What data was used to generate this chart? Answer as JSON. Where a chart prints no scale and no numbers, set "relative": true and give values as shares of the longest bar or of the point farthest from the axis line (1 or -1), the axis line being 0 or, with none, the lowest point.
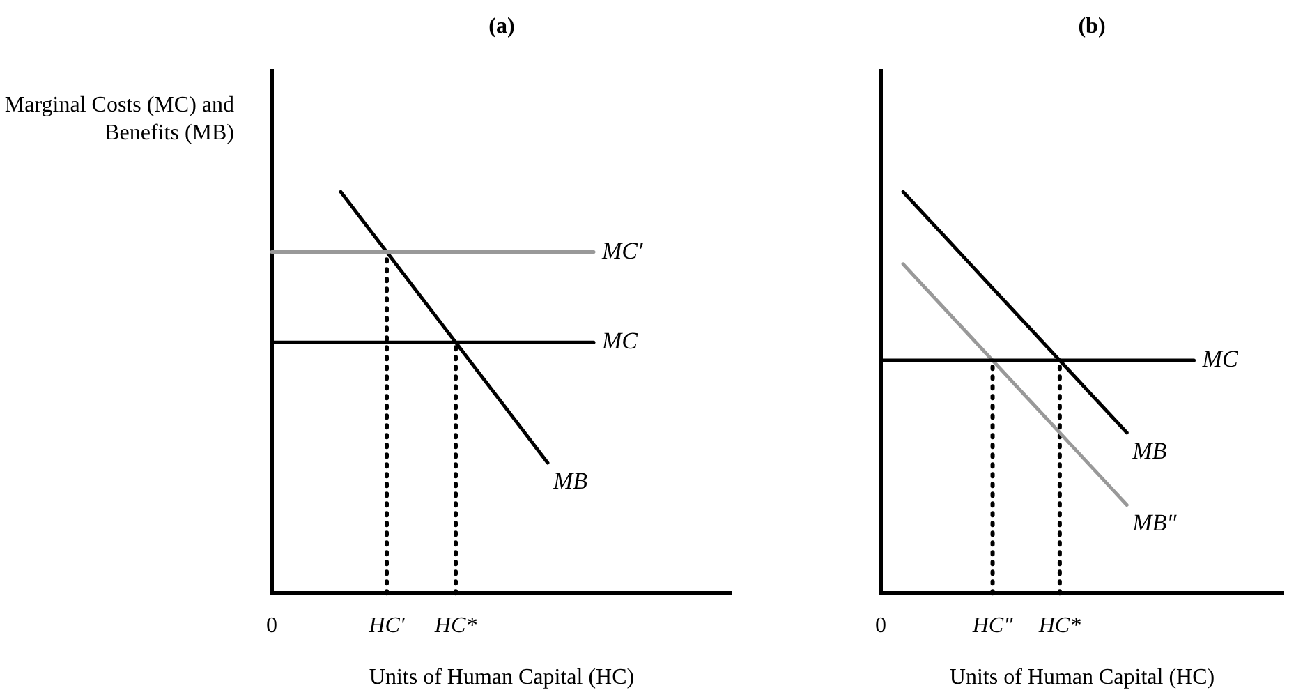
{
  "chart_data": [
    {
      "type": "line",
      "title": "(a)",
      "ylabel": "Marginal Costs (MC) and Benefits (MB)",
      "xlabel": "Units of Human Capital (HC)",
      "relative": true,
      "marker": "none",
      "categories": [
        "0",
        null,
        null,
        null,
        null,
        "HC′",
        null,
        null,
        "HC*",
        null,
        null,
        null,
        null,
        null,
        null,
        null,
        null,
        null,
        null,
        null,
        null
      ],
      "ref_lines": [
        {
          "axis": "x",
          "value": "HC′",
          "color": "#000000",
          "line_style": "dotted"
        },
        {
          "axis": "x",
          "value": "HC*",
          "color": "#000000",
          "line_style": "dotted"
        }
      ],
      "series": [
        {
          "name": "MC′",
          "color": "#999999",
          "values": [
            0.85,
            0.85,
            0.85,
            0.85,
            0.85,
            0.85,
            0.85,
            0.85,
            0.85,
            0.85,
            0.85,
            0.85,
            0.85,
            0.85,
            0.85,
            null,
            null,
            null,
            null,
            null,
            null
          ]
        },
        {
          "name": "MC",
          "color": "#000000",
          "values": [
            0.625,
            0.625,
            0.625,
            0.625,
            0.625,
            0.625,
            0.625,
            0.625,
            0.625,
            0.625,
            0.625,
            0.625,
            0.625,
            0.625,
            0.625,
            null,
            null,
            null,
            null,
            null,
            null
          ]
        },
        {
          "name": "MB",
          "color": "#000000",
          "values": [
            null,
            null,
            null,
            1,
            0.925,
            0.85,
            0.775,
            0.7,
            0.625,
            0.55,
            0.475,
            0.4,
            0.325,
            null,
            null,
            null,
            null,
            null,
            null,
            null,
            null
          ]
        }
      ]
    },
    {
      "type": "line",
      "title": "(b)",
      "xlabel": "Units of Human Capital (HC)",
      "relative": true,
      "marker": "none",
      "categories": [
        "0",
        null,
        null,
        null,
        null,
        "HC″",
        null,
        null,
        "HC*",
        null,
        null,
        null,
        null,
        null,
        null,
        null,
        null,
        null,
        null
      ],
      "ref_lines": [
        {
          "axis": "x",
          "value": "HC″",
          "color": "#000000",
          "line_style": "dotted"
        },
        {
          "axis": "x",
          "value": "HC*",
          "color": "#000000",
          "line_style": "dotted"
        }
      ],
      "series": [
        {
          "name": "MC",
          "color": "#000000",
          "values": [
            0.58,
            0.58,
            0.58,
            0.58,
            0.58,
            0.58,
            0.58,
            0.58,
            0.58,
            0.58,
            0.58,
            0.58,
            0.58,
            0.58,
            0.58,
            null,
            null,
            null,
            null
          ]
        },
        {
          "name": "MB",
          "color": "#000000",
          "values": [
            null,
            1,
            0.94,
            0.88,
            0.82,
            0.76,
            0.7,
            0.64,
            0.58,
            0.52,
            0.46,
            0.4,
            null,
            null,
            null,
            null,
            null,
            null,
            null
          ]
        },
        {
          "name": "MB″",
          "color": "#999999",
          "values": [
            null,
            0.82,
            0.76,
            0.7,
            0.64,
            0.58,
            0.52,
            0.46,
            0.4,
            0.34,
            0.28,
            0.22,
            null,
            null,
            null,
            null,
            null,
            null,
            null
          ]
        }
      ]
    }
  ]
}
